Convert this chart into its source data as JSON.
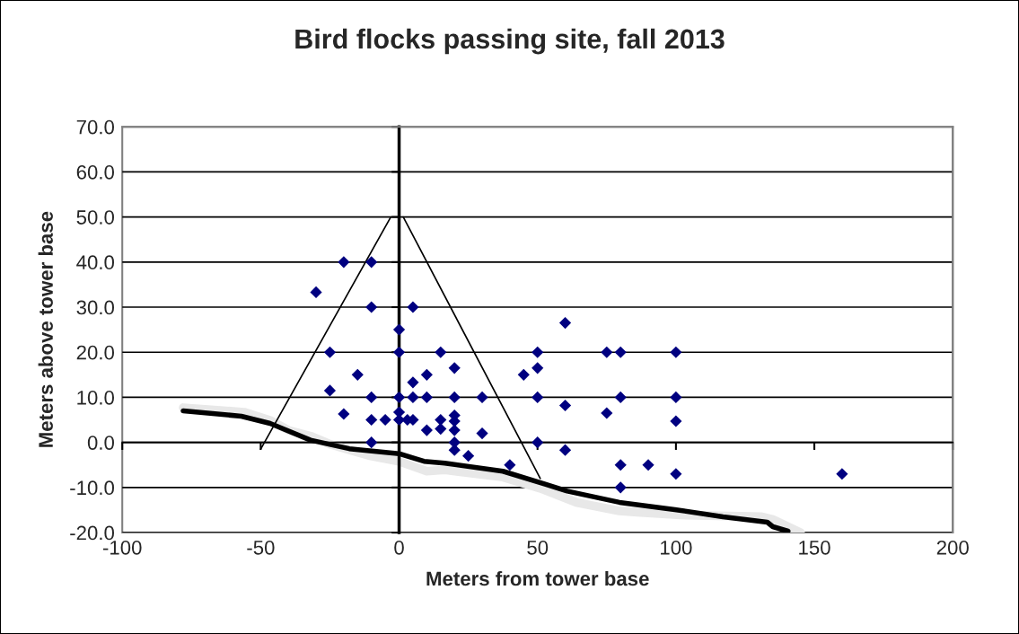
{
  "chart_data": {
    "type": "scatter",
    "title": "Bird flocks passing site, fall 2013",
    "xlabel": "Meters from tower base",
    "ylabel": "Meters above tower base",
    "xlim": [
      -100,
      200
    ],
    "ylim": [
      -20,
      70
    ],
    "xticks": [
      -100,
      -50,
      0,
      50,
      100,
      150,
      200
    ],
    "yticks": [
      {
        "value": -20,
        "label": "-20.0"
      },
      {
        "value": -10,
        "label": "-10.0"
      },
      {
        "value": 0,
        "label": "0.0"
      },
      {
        "value": 10,
        "label": "10.0"
      },
      {
        "value": 20,
        "label": "20.0"
      },
      {
        "value": 30,
        "label": "30.0"
      },
      {
        "value": 40,
        "label": "40.0"
      },
      {
        "value": 50,
        "label": "50.0"
      },
      {
        "value": 60,
        "label": "60.0"
      },
      {
        "value": 70,
        "label": "70.0"
      }
    ],
    "grid": "y",
    "legend": false,
    "series": [
      {
        "type": "line",
        "color": "#e8e8e8",
        "x": [
          -78,
          -56,
          -46.6,
          -40,
          -32,
          -24.5,
          -11,
          0,
          10,
          16.5,
          37.5,
          51,
          64,
          79.6,
          86,
          101.7,
          131,
          135,
          145
        ],
        "values": [
          7.7,
          6.7,
          4.9,
          2.7,
          1.4,
          -0.5,
          -2.9,
          -4.2,
          -6.4,
          -6.1,
          -7.7,
          -10.2,
          -13.3,
          -15.2,
          -15.5,
          -16.1,
          -16.5,
          -17.1,
          -20
        ]
      },
      {
        "type": "line",
        "color": "#000000",
        "x": [
          -78,
          -57,
          -46.6,
          -32,
          -18,
          0,
          9,
          16.5,
          37.5,
          53,
          60.7,
          79.6,
          99.6,
          117,
          133,
          135,
          140.5
        ],
        "values": [
          7,
          5.8,
          4.2,
          0.5,
          -1.4,
          -2.5,
          -4.2,
          -4.6,
          -6.4,
          -9.3,
          -10.8,
          -13.3,
          -14.9,
          -16.5,
          -17.7,
          -18.7,
          -19.7
        ]
      },
      {
        "type": "line",
        "color": "#000000",
        "x": [
          -50,
          -3
        ],
        "values": [
          -1.5,
          50
        ]
      },
      {
        "type": "line",
        "color": "#000000",
        "x": [
          1.5,
          51
        ],
        "values": [
          50,
          -8
        ]
      },
      {
        "color": "#000080",
        "marker": "diamond",
        "x": [
          -30,
          -20,
          -10,
          -10,
          5,
          0,
          0,
          -25,
          15,
          20,
          -15,
          10,
          5,
          -25,
          -10,
          0,
          5,
          10,
          20,
          -20,
          0,
          -10,
          -5,
          0,
          3,
          5,
          10,
          15,
          15,
          20,
          20,
          20,
          20,
          20,
          -10,
          25,
          30,
          30,
          40,
          45,
          50,
          50,
          50,
          50,
          60,
          60,
          60,
          75,
          80,
          75,
          80,
          80,
          80,
          90,
          100,
          100,
          100,
          100,
          160
        ],
        "values": [
          33.3,
          40,
          40,
          30,
          30,
          25,
          20,
          20,
          20,
          16.5,
          15,
          15,
          13.3,
          11.5,
          10,
          10,
          10,
          10,
          10,
          6.3,
          6.7,
          5,
          5,
          5,
          5,
          5,
          2.7,
          5,
          3,
          6,
          4.7,
          2.7,
          0,
          -1.7,
          0,
          -3,
          10,
          2,
          -5,
          15,
          20,
          16.5,
          10,
          0,
          26.5,
          8.2,
          -1.7,
          20,
          20,
          6.5,
          10,
          -5,
          -10,
          -5,
          20,
          10,
          4.7,
          -7,
          -7
        ]
      }
    ]
  }
}
